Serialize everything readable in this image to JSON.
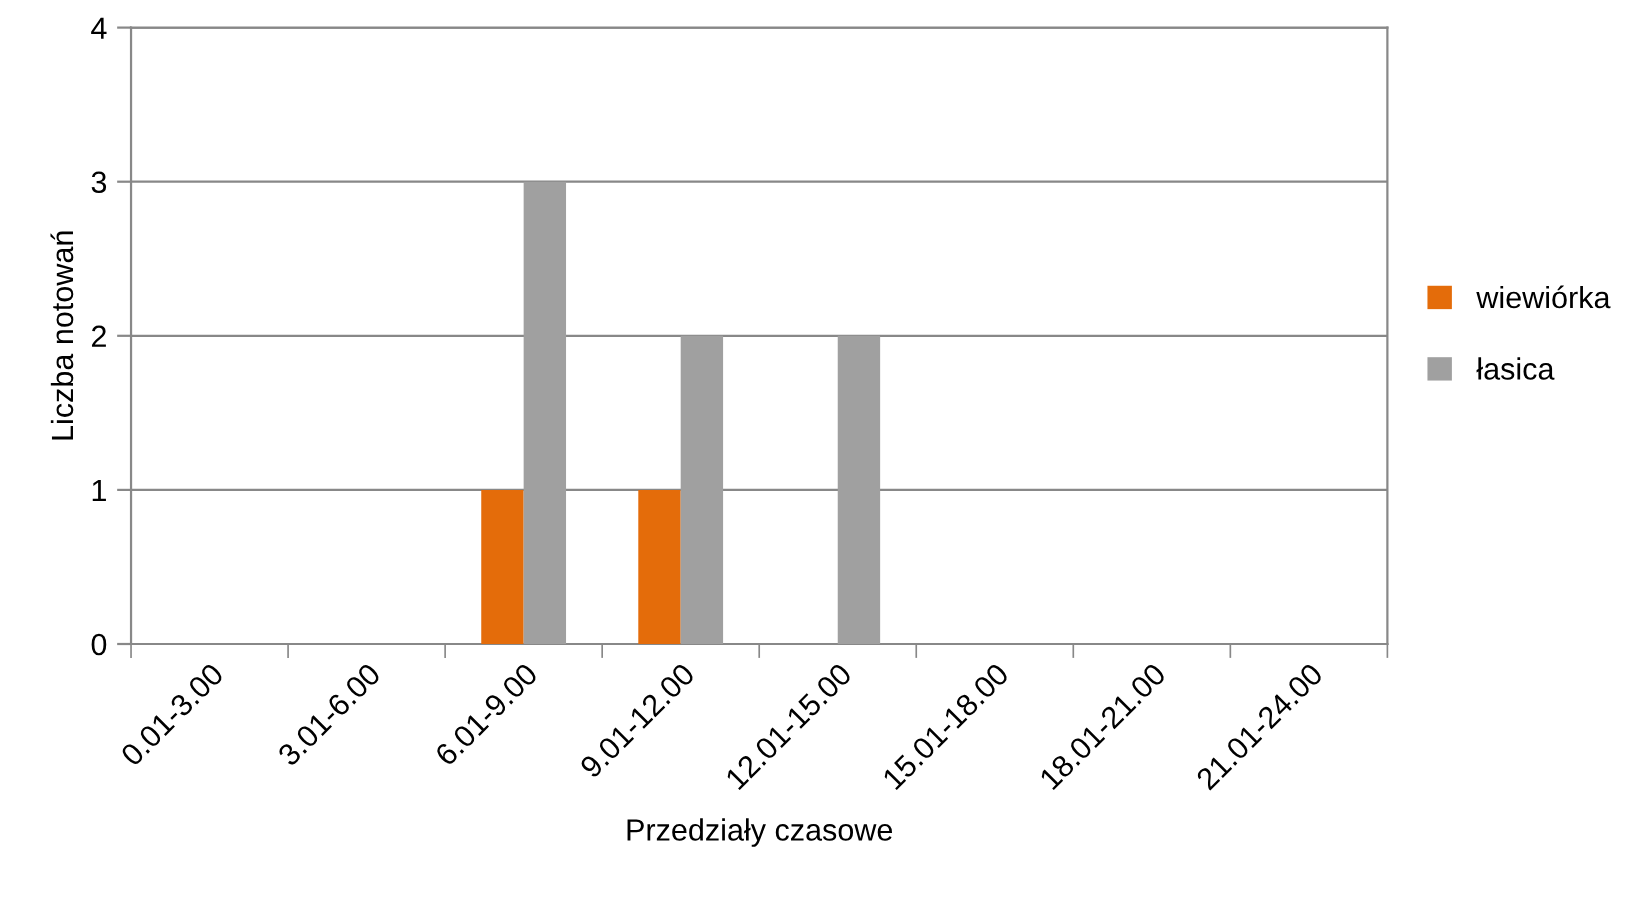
{
  "chart_data": {
    "type": "bar",
    "xlabel": "Przedziały czasowe",
    "ylabel": "Liczba notowań",
    "categories": [
      "0.01-3.00",
      "3.01-6.00",
      "6.01-9.00",
      "9.01-12.00",
      "12.01-15.00",
      "15.01-18.00",
      "18.01-21.00",
      "21.01-24.00"
    ],
    "series": [
      {
        "name": "wiewiórka",
        "color": "#e46c0a",
        "values": [
          0,
          0,
          1,
          1,
          0,
          0,
          0,
          0
        ]
      },
      {
        "name": "łasica",
        "color": "#a0a0a0",
        "values": [
          0,
          0,
          3,
          2,
          2,
          0,
          0,
          0
        ]
      }
    ],
    "ylim": [
      0,
      4
    ],
    "yticks": [
      0,
      1,
      2,
      3,
      4
    ],
    "grid": "y",
    "legend": "right"
  }
}
